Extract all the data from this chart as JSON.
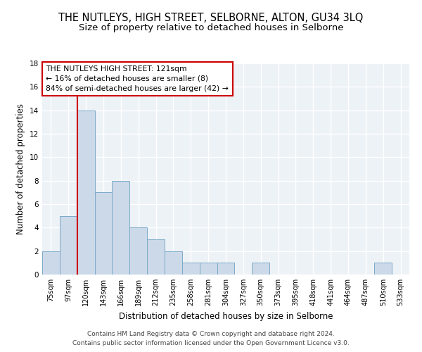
{
  "title": "THE NUTLEYS, HIGH STREET, SELBORNE, ALTON, GU34 3LQ",
  "subtitle": "Size of property relative to detached houses in Selborne",
  "xlabel": "Distribution of detached houses by size in Selborne",
  "ylabel": "Number of detached properties",
  "categories": [
    "75sqm",
    "97sqm",
    "120sqm",
    "143sqm",
    "166sqm",
    "189sqm",
    "212sqm",
    "235sqm",
    "258sqm",
    "281sqm",
    "304sqm",
    "327sqm",
    "350sqm",
    "373sqm",
    "395sqm",
    "418sqm",
    "441sqm",
    "464sqm",
    "487sqm",
    "510sqm",
    "533sqm"
  ],
  "values": [
    2,
    5,
    14,
    7,
    8,
    4,
    3,
    2,
    1,
    1,
    1,
    0,
    1,
    0,
    0,
    0,
    0,
    0,
    0,
    1,
    0
  ],
  "bar_color": "#ccd9e8",
  "bar_edge_color": "#7aaac8",
  "vline_color": "#cc0000",
  "vline_x_index": 2,
  "annotation_text": "THE NUTLEYS HIGH STREET: 121sqm\n← 16% of detached houses are smaller (8)\n84% of semi-detached houses are larger (42) →",
  "annotation_box_color": "white",
  "annotation_box_edge_color": "#cc0000",
  "ylim": [
    0,
    18
  ],
  "yticks": [
    0,
    2,
    4,
    6,
    8,
    10,
    12,
    14,
    16,
    18
  ],
  "background_color": "#edf2f7",
  "grid_color": "white",
  "footer_text": "Contains HM Land Registry data © Crown copyright and database right 2024.\nContains public sector information licensed under the Open Government Licence v3.0.",
  "title_fontsize": 10.5,
  "subtitle_fontsize": 9.5,
  "ylabel_fontsize": 8.5,
  "xlabel_fontsize": 8.5,
  "tick_fontsize": 7,
  "annotation_fontsize": 7.8,
  "footer_fontsize": 6.5
}
